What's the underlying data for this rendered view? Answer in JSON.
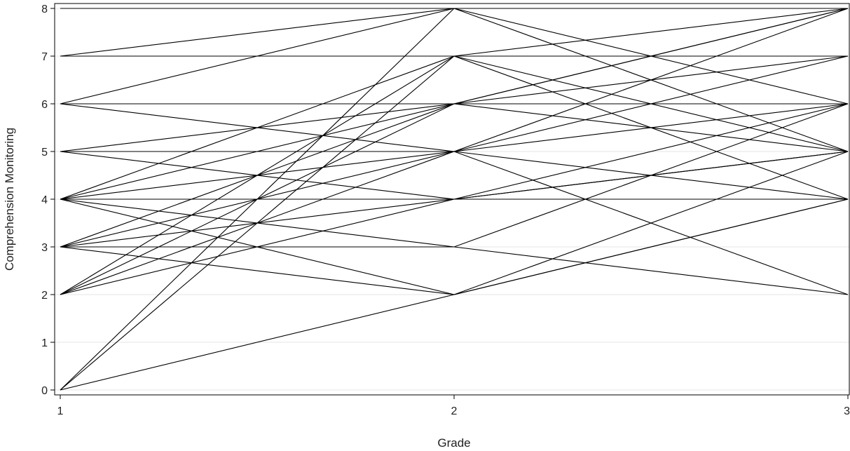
{
  "chart_data": {
    "type": "line",
    "title": "",
    "xlabel": "Grade",
    "ylabel": "Comprehension Monitoring",
    "x": [
      1,
      2,
      3
    ],
    "xticks": [
      "1",
      "2",
      "3"
    ],
    "yticks": [
      "0",
      "1",
      "2",
      "3",
      "4",
      "5",
      "6",
      "7",
      "8"
    ],
    "xlim": [
      1,
      3
    ],
    "ylim": [
      0,
      8
    ],
    "grid": "horizontal",
    "legend": "none",
    "line_color": "#000000",
    "grid_color": "#e6e6e6",
    "series": [
      {
        "values": [
          0,
          2,
          4
        ]
      },
      {
        "values": [
          0,
          7,
          8
        ]
      },
      {
        "values": [
          0,
          8,
          6
        ]
      },
      {
        "values": [
          2,
          5,
          8
        ]
      },
      {
        "values": [
          2,
          6,
          5
        ]
      },
      {
        "values": [
          2,
          4,
          6
        ]
      },
      {
        "values": [
          2,
          7,
          4
        ]
      },
      {
        "values": [
          3,
          5,
          6
        ]
      },
      {
        "values": [
          3,
          3,
          6
        ]
      },
      {
        "values": [
          3,
          2,
          5
        ]
      },
      {
        "values": [
          3,
          4,
          5
        ]
      },
      {
        "values": [
          3,
          6,
          8
        ]
      },
      {
        "values": [
          4,
          6,
          8
        ]
      },
      {
        "values": [
          4,
          5,
          7
        ]
      },
      {
        "values": [
          4,
          2,
          4
        ]
      },
      {
        "values": [
          4,
          4,
          5
        ]
      },
      {
        "values": [
          4,
          7,
          7
        ]
      },
      {
        "values": [
          4,
          4,
          4
        ]
      },
      {
        "values": [
          4,
          3,
          2
        ]
      },
      {
        "values": [
          5,
          6,
          7
        ]
      },
      {
        "values": [
          5,
          4,
          4
        ]
      },
      {
        "values": [
          5,
          5,
          2
        ]
      },
      {
        "values": [
          6,
          6,
          6
        ]
      },
      {
        "values": [
          6,
          8,
          8
        ]
      },
      {
        "values": [
          6,
          5,
          4
        ]
      },
      {
        "values": [
          7,
          7,
          7
        ]
      },
      {
        "values": [
          7,
          8,
          5
        ]
      },
      {
        "values": [
          7,
          7,
          5
        ]
      },
      {
        "values": [
          8,
          8,
          8
        ]
      }
    ]
  }
}
